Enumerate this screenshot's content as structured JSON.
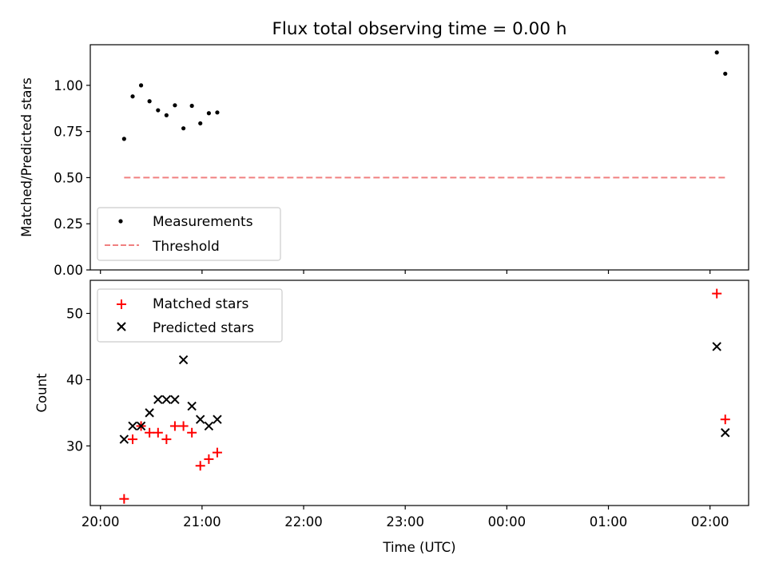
{
  "title": "Flux total observing time = 0.00 h",
  "xlabel": "Time (UTC)",
  "x_ticks": [
    "20:00",
    "21:00",
    "22:00",
    "23:00",
    "00:00",
    "01:00",
    "02:00"
  ],
  "chart_data": [
    {
      "type": "scatter",
      "title": "Flux total observing time = 0.00 h",
      "xlabel": "",
      "ylabel": "Matched/Predicted stars",
      "x_unit": "hours since 20:00 UTC",
      "xlim": [
        -0.1,
        6.38
      ],
      "ylim": [
        0,
        1.22
      ],
      "y_ticks": [
        "0.00",
        "0.25",
        "0.50",
        "0.75",
        "1.00"
      ],
      "legend_position": "lower-left",
      "series": [
        {
          "name": "Measurements",
          "marker": "dot",
          "color": "#000000",
          "x": [
            0.233,
            0.317,
            0.4,
            0.483,
            0.567,
            0.65,
            0.733,
            0.817,
            0.9,
            0.983,
            1.067,
            1.15,
            6.067,
            6.15
          ],
          "y": [
            0.71,
            0.94,
            1.0,
            0.914,
            0.865,
            0.838,
            0.892,
            0.767,
            0.889,
            0.794,
            0.849,
            0.853,
            1.178,
            1.063
          ]
        },
        {
          "name": "Threshold",
          "marker": "dashed-line",
          "color": "#f08080",
          "x": [
            0.233,
            6.15
          ],
          "y": [
            0.5,
            0.5
          ]
        }
      ]
    },
    {
      "type": "scatter",
      "title": "",
      "xlabel": "Time (UTC)",
      "ylabel": "Count",
      "x_unit": "hours since 20:00 UTC",
      "xlim": [
        -0.1,
        6.38
      ],
      "ylim": [
        21,
        55
      ],
      "y_ticks": [
        "30",
        "40",
        "50"
      ],
      "legend_position": "upper-left",
      "series": [
        {
          "name": "Matched stars",
          "marker": "plus",
          "color": "#ff0000",
          "x": [
            0.233,
            0.317,
            0.4,
            0.483,
            0.567,
            0.65,
            0.733,
            0.817,
            0.9,
            0.983,
            1.067,
            1.15,
            6.067,
            6.15
          ],
          "y": [
            22,
            31,
            33,
            32,
            32,
            31,
            33,
            33,
            32,
            27,
            28,
            29,
            53,
            34
          ]
        },
        {
          "name": "Predicted stars",
          "marker": "x",
          "color": "#000000",
          "x": [
            0.233,
            0.317,
            0.4,
            0.483,
            0.567,
            0.65,
            0.733,
            0.817,
            0.9,
            0.983,
            1.067,
            1.15,
            6.067,
            6.15
          ],
          "y": [
            31,
            33,
            33,
            35,
            37,
            37,
            37,
            43,
            36,
            34,
            33,
            34,
            45,
            32
          ]
        }
      ]
    }
  ]
}
